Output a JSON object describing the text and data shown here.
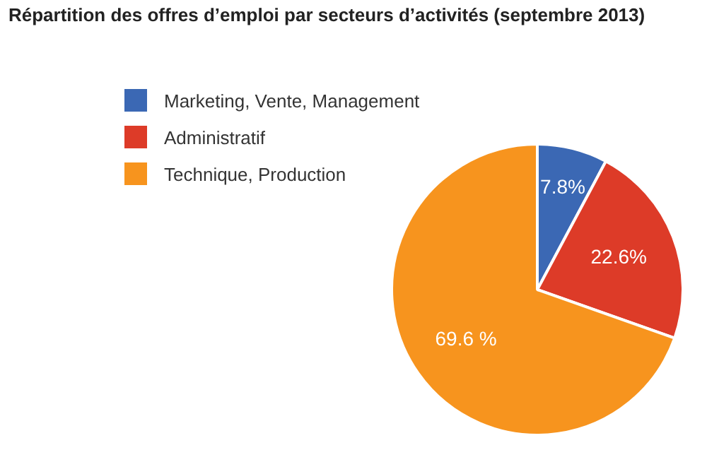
{
  "chart_data": {
    "type": "pie",
    "title": "Répartition des offres d’emploi par secteurs d’activités (septembre 2013)",
    "categories": [
      "Marketing, Vente, Management",
      "Administratif",
      "Technique, Production"
    ],
    "values": [
      7.8,
      22.6,
      69.6
    ],
    "colors": [
      "#3b68b4",
      "#dd3b28",
      "#f7941e"
    ],
    "value_labels": [
      "7.8%",
      "22.6%",
      "69.6 %"
    ],
    "legend": "top left"
  }
}
